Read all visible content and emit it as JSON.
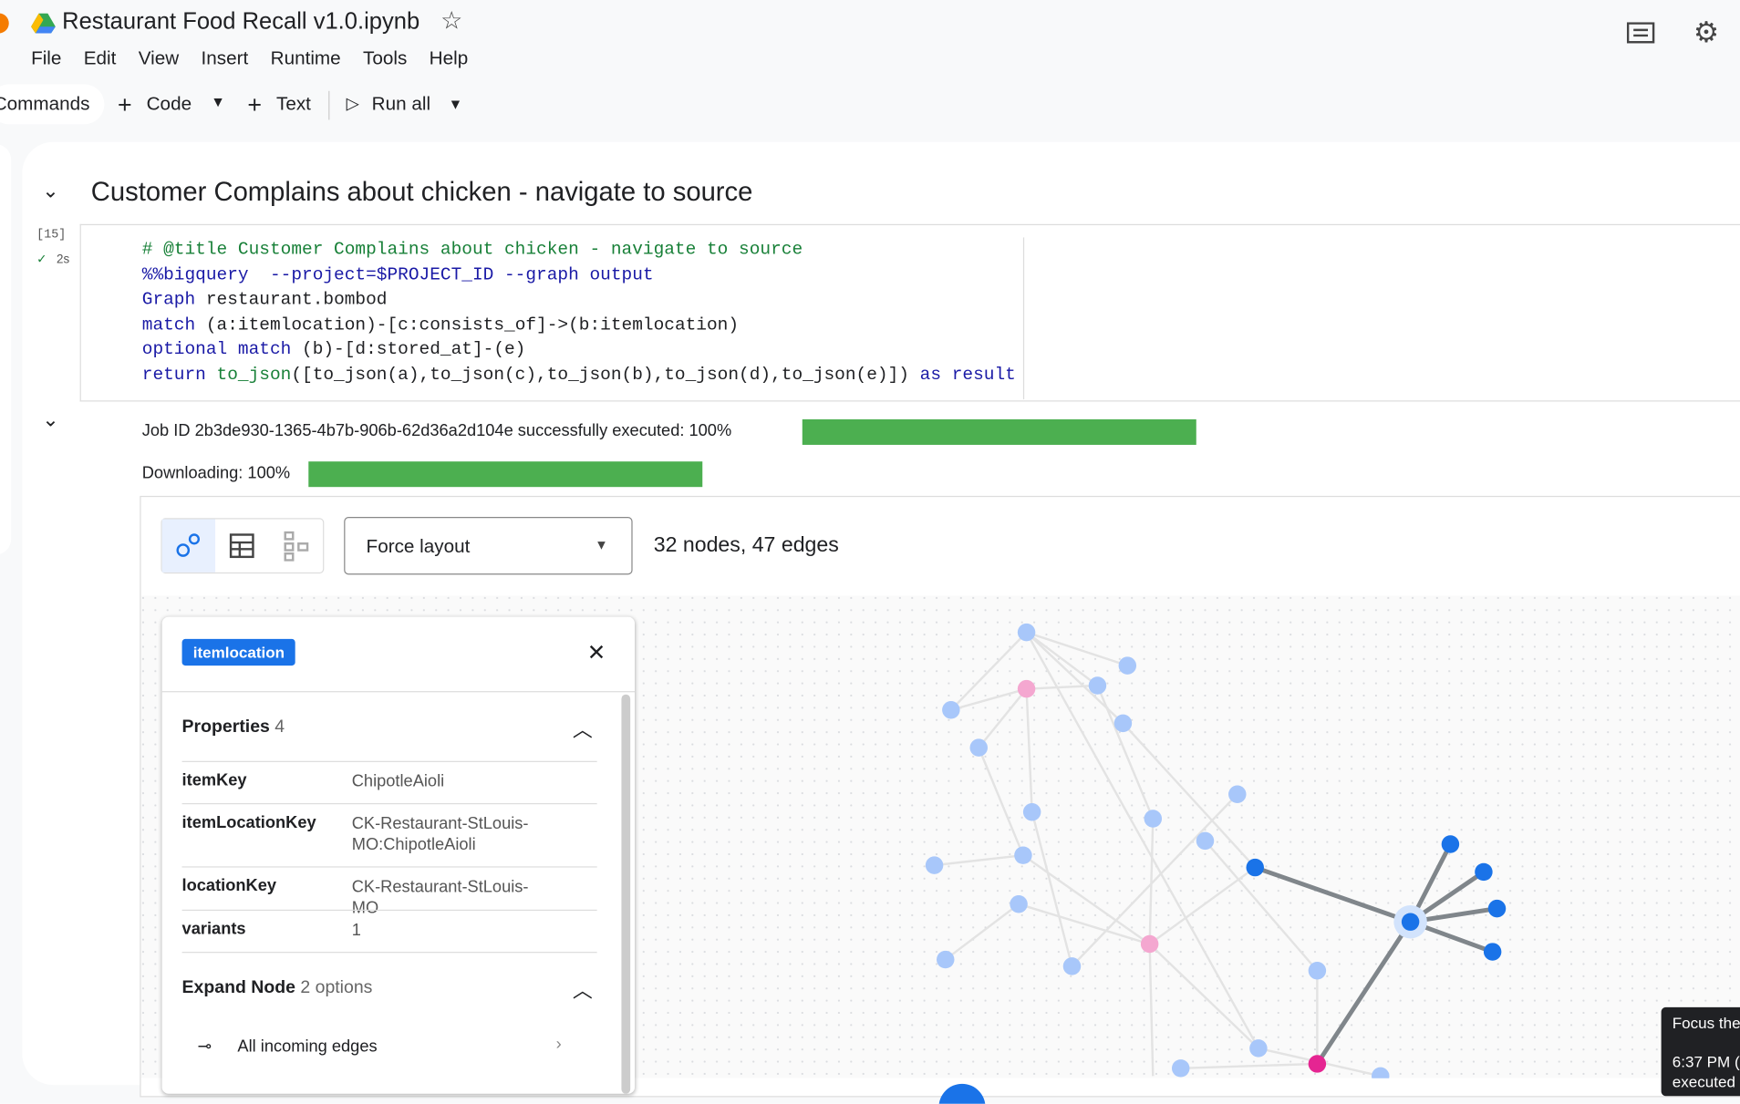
{
  "header": {
    "title": "Restaurant Food Recall v1.0.ipynb",
    "menu": [
      "File",
      "Edit",
      "View",
      "Insert",
      "Runtime",
      "Tools",
      "Help"
    ]
  },
  "toolbar": {
    "commands": "Commands",
    "code": "Code",
    "text": "Text",
    "run_all": "Run all"
  },
  "section_title": "Customer Complains about chicken - navigate to source",
  "cell": {
    "exec_count": "[15]",
    "duration": "2s",
    "code": [
      [
        {
          "text": "# @title Customer Complains about chicken - navigate to source",
          "color": "#188038"
        }
      ],
      [
        {
          "text": "%%bigquery  --project=$PROJECT_ID --graph output",
          "color": "#1a1aa6"
        }
      ],
      [
        {
          "text": "Graph",
          "color": "#1a1aa6"
        },
        {
          "text": " restaurant.bombod",
          "color": "#202124"
        }
      ],
      [
        {
          "text": "match",
          "color": "#1a1aa6"
        },
        {
          "text": " (a:itemlocation)-[c:consists_of]->(b:itemlocation)",
          "color": "#202124"
        }
      ],
      [
        {
          "text": "optional match",
          "color": "#1a1aa6"
        },
        {
          "text": " (b)-[d:stored_at]-(e)",
          "color": "#202124"
        }
      ],
      [
        {
          "text": "return",
          "color": "#1a1aa6"
        },
        {
          "text": " to_json",
          "color": "#188038"
        },
        {
          "text": "([to_json(a),to_json(c),to_json(b),to_json(d),to_json(e)])",
          "color": "#202124"
        },
        {
          "text": " as result",
          "color": "#1a1aa6"
        }
      ]
    ]
  },
  "output": {
    "job_status": "Job  ID  2b3de930-1365-4b7b-906b-62d36a2d104e  successfully  executed:  100%",
    "download_status": "Downloading:  100%"
  },
  "viewer": {
    "layout": "Force layout",
    "summary": "32 nodes, 47 edges",
    "panel": {
      "tag": "itemlocation",
      "properties_title": "Properties",
      "properties_count": "4",
      "rows": [
        [
          "itemKey",
          "ChipotleAioli"
        ],
        [
          "itemLocationKey",
          "CK-Restaurant-StLouis-MO:ChipotleAioli"
        ],
        [
          "locationKey",
          "CK-Restaurant-StLouis-MO"
        ],
        [
          "variants",
          "1"
        ]
      ],
      "expand_title": "Expand Node",
      "expand_count": "2 options",
      "incoming": "All incoming edges"
    }
  },
  "tooltip": {
    "line1": "Focus the",
    "line2": "6:37 PM (",
    "line3": "executed"
  }
}
